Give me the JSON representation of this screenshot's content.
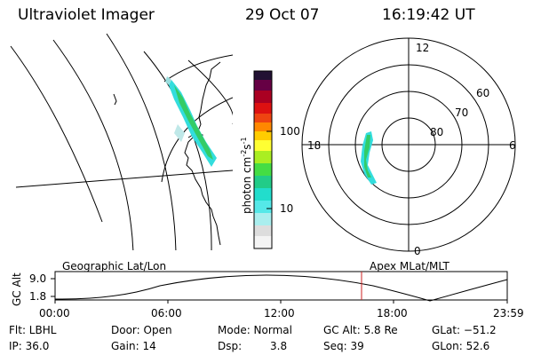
{
  "header": {
    "instrument": "Ultraviolet Imager",
    "date": "29 Oct 07",
    "time": "16:19:42 UT"
  },
  "colorbar": {
    "label": "photon cm",
    "label_sup1": "-2",
    "label_mid": "s",
    "label_sup2": "-1",
    "tick_high": "100",
    "tick_low": "10"
  },
  "polar": {
    "mlt_top": "12",
    "mlt_left": "18",
    "mlt_right": "6",
    "mlt_bottom": "0",
    "lat_60": "60",
    "lat_70": "70",
    "lat_80": "80"
  },
  "timeline": {
    "left_title": "Geographic Lat/Lon",
    "right_title": "Apex MLat/MLT",
    "ylabel": "GC Alt",
    "ytick_top": "9.0",
    "ytick_bottom": "1.8",
    "xticks": [
      "00:00",
      "06:00",
      "12:00",
      "18:00",
      "23:59"
    ]
  },
  "info": {
    "row1": {
      "filter": "Flt: LBHL",
      "door": "Door: Open",
      "mode": "Mode: Normal",
      "gc_alt": "GC Alt: 5.8 Re",
      "glat": "GLat: −51.2"
    },
    "row2": {
      "ip": "IP: 36.0",
      "gain": "Gain: 14",
      "dsp_label": "Dsp:",
      "dsp_value": "3.8",
      "seq": "Seq: 39",
      "glon": "GLon: 52.6"
    }
  },
  "colors": {
    "aurora_cyan": "#33dddd",
    "aurora_green": "#33cc66",
    "marker_red": "#cc2222"
  }
}
